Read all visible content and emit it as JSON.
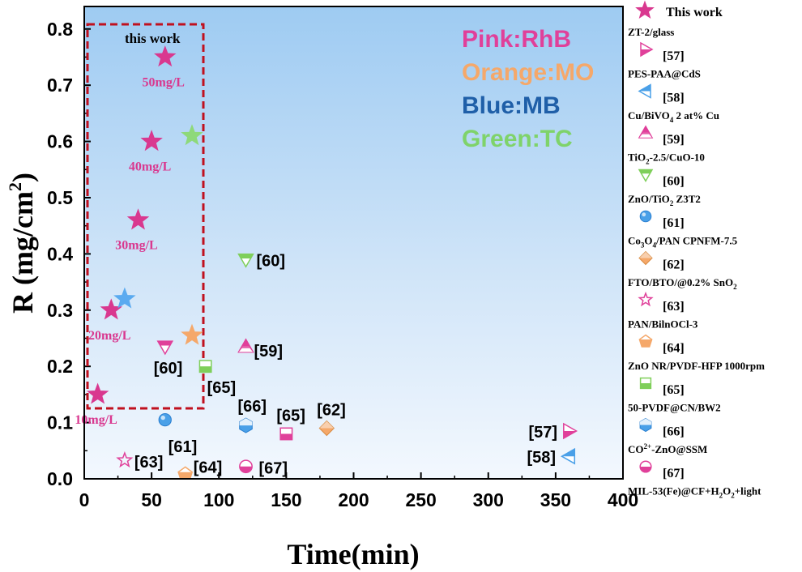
{
  "chart_data": {
    "type": "scatter",
    "xlabel": "Time(min)",
    "ylabel": "R (mg/cm²)",
    "ylabel_main": "R (mg/cm",
    "ylabel_sup": "2",
    "ylabel_end": ")",
    "xlim": [
      0,
      400
    ],
    "ylim": [
      0,
      0.84
    ],
    "xticks": [
      0,
      50,
      100,
      150,
      200,
      250,
      300,
      350,
      400
    ],
    "yticks": [
      0.0,
      0.1,
      0.2,
      0.3,
      0.4,
      0.5,
      0.6,
      0.7,
      0.8
    ],
    "grid": false,
    "background": "light-blue gradient",
    "legend_position": "right-outside",
    "color_key": [
      {
        "text": "Pink:RhB",
        "color": "#e0409a"
      },
      {
        "text": "Orange:MO",
        "color": "#f5a86a"
      },
      {
        "text": "Blue:MB",
        "color": "#1f5fa8"
      },
      {
        "text": "Green:TC",
        "color": "#7fd36a"
      }
    ],
    "this_work_box_label": "this work",
    "this_work_points": [
      {
        "x": 10,
        "y": 0.15,
        "label": "10mg/L",
        "color": "#d9388f"
      },
      {
        "x": 20,
        "y": 0.3,
        "label": "20mg/L",
        "color": "#d9388f"
      },
      {
        "x": 40,
        "y": 0.46,
        "label": "30mg/L",
        "color": "#d9388f"
      },
      {
        "x": 50,
        "y": 0.6,
        "label": "40mg/L",
        "color": "#d9388f"
      },
      {
        "x": 60,
        "y": 0.75,
        "label": "50mg/L",
        "color": "#d9388f"
      },
      {
        "x": 30,
        "y": 0.32,
        "label": "",
        "color": "#5aaaf0"
      },
      {
        "x": 80,
        "y": 0.255,
        "label": "",
        "color": "#f5a86a"
      },
      {
        "x": 80,
        "y": 0.61,
        "label": "",
        "color": "#8ed97a"
      }
    ],
    "reference_points": [
      {
        "ref": "[57]",
        "x": 360,
        "y": 0.085,
        "marker": "triangle-right",
        "color": "#e0409a"
      },
      {
        "ref": "[58]",
        "x": 360,
        "y": 0.04,
        "marker": "triangle-left",
        "color": "#4aa0e8"
      },
      {
        "ref": "[59]",
        "x": 120,
        "y": 0.235,
        "marker": "triangle-up",
        "color": "#e0409a"
      },
      {
        "ref": "[60]",
        "x": 120,
        "y": 0.39,
        "marker": "triangle-down",
        "color": "#7fcf5a"
      },
      {
        "ref": "[60]",
        "x": 60,
        "y": 0.235,
        "marker": "triangle-down",
        "color": "#e0409a"
      },
      {
        "ref": "[61]",
        "x": 60,
        "y": 0.105,
        "marker": "circle",
        "color": "#4aa0e8"
      },
      {
        "ref": "[62]",
        "x": 180,
        "y": 0.09,
        "marker": "diamond",
        "color": "#f5a86a"
      },
      {
        "ref": "[63]",
        "x": 30,
        "y": 0.033,
        "marker": "star-open",
        "color": "#e0409a"
      },
      {
        "ref": "[64]",
        "x": 75,
        "y": 0.008,
        "marker": "pentagon",
        "color": "#f5a86a"
      },
      {
        "ref": "[65]",
        "x": 90,
        "y": 0.2,
        "marker": "square",
        "color": "#7fcf5a"
      },
      {
        "ref": "[65]",
        "x": 150,
        "y": 0.08,
        "marker": "square",
        "color": "#e0409a"
      },
      {
        "ref": "[66]",
        "x": 120,
        "y": 0.095,
        "marker": "hexagon",
        "color": "#4aa0e8"
      },
      {
        "ref": "[67]",
        "x": 120,
        "y": 0.022,
        "marker": "circle-half",
        "color": "#e0409a"
      }
    ],
    "legend": [
      {
        "text": "This work",
        "marker": "star",
        "color": "#d9388f"
      },
      {
        "text": "ZT-2/glass",
        "marker": "triangle-right",
        "color": "#e0409a",
        "ref": "[57]"
      },
      {
        "text": "PES-PAA@CdS",
        "marker": "triangle-left",
        "color": "#4aa0e8",
        "ref": "[58]"
      },
      {
        "text": "Cu/BiVO4 2 at% Cu",
        "marker": "triangle-up",
        "color": "#e0409a",
        "ref": "[59]"
      },
      {
        "text": "TiO2-2.5/CuO-10",
        "marker": "triangle-down",
        "color": "#7fcf5a",
        "ref": "[60]"
      },
      {
        "text": "ZnO/TiO2 Z3T2",
        "marker": "circle",
        "color": "#4aa0e8",
        "ref": "[61]"
      },
      {
        "text": "Co3O4/PAN CPNFM-7.5",
        "marker": "diamond",
        "color": "#f5a86a",
        "ref": "[62]"
      },
      {
        "text": "FTO/BTO/@0.2% SnO2",
        "marker": "star-open",
        "color": "#e0409a",
        "ref": "[63]"
      },
      {
        "text": "PAN/BilnOCl-3",
        "marker": "pentagon",
        "color": "#f5a86a",
        "ref": "[64]"
      },
      {
        "text": "ZnO NR/PVDF-HFP 1000rpm",
        "marker": "square",
        "color": "#7fcf5a",
        "ref": "[65]"
      },
      {
        "text": "50-PVDF@CN/BW2",
        "marker": "hexagon",
        "color": "#4aa0e8",
        "ref": "[66]"
      },
      {
        "text": "CO2+-ZnO@SSM",
        "marker": "circle-half",
        "color": "#e0409a",
        "ref": "[67]"
      },
      {
        "text": "MIL-53(Fe)@CF+H2O2+light",
        "marker": "",
        "color": "#000000",
        "ref": ""
      }
    ]
  }
}
